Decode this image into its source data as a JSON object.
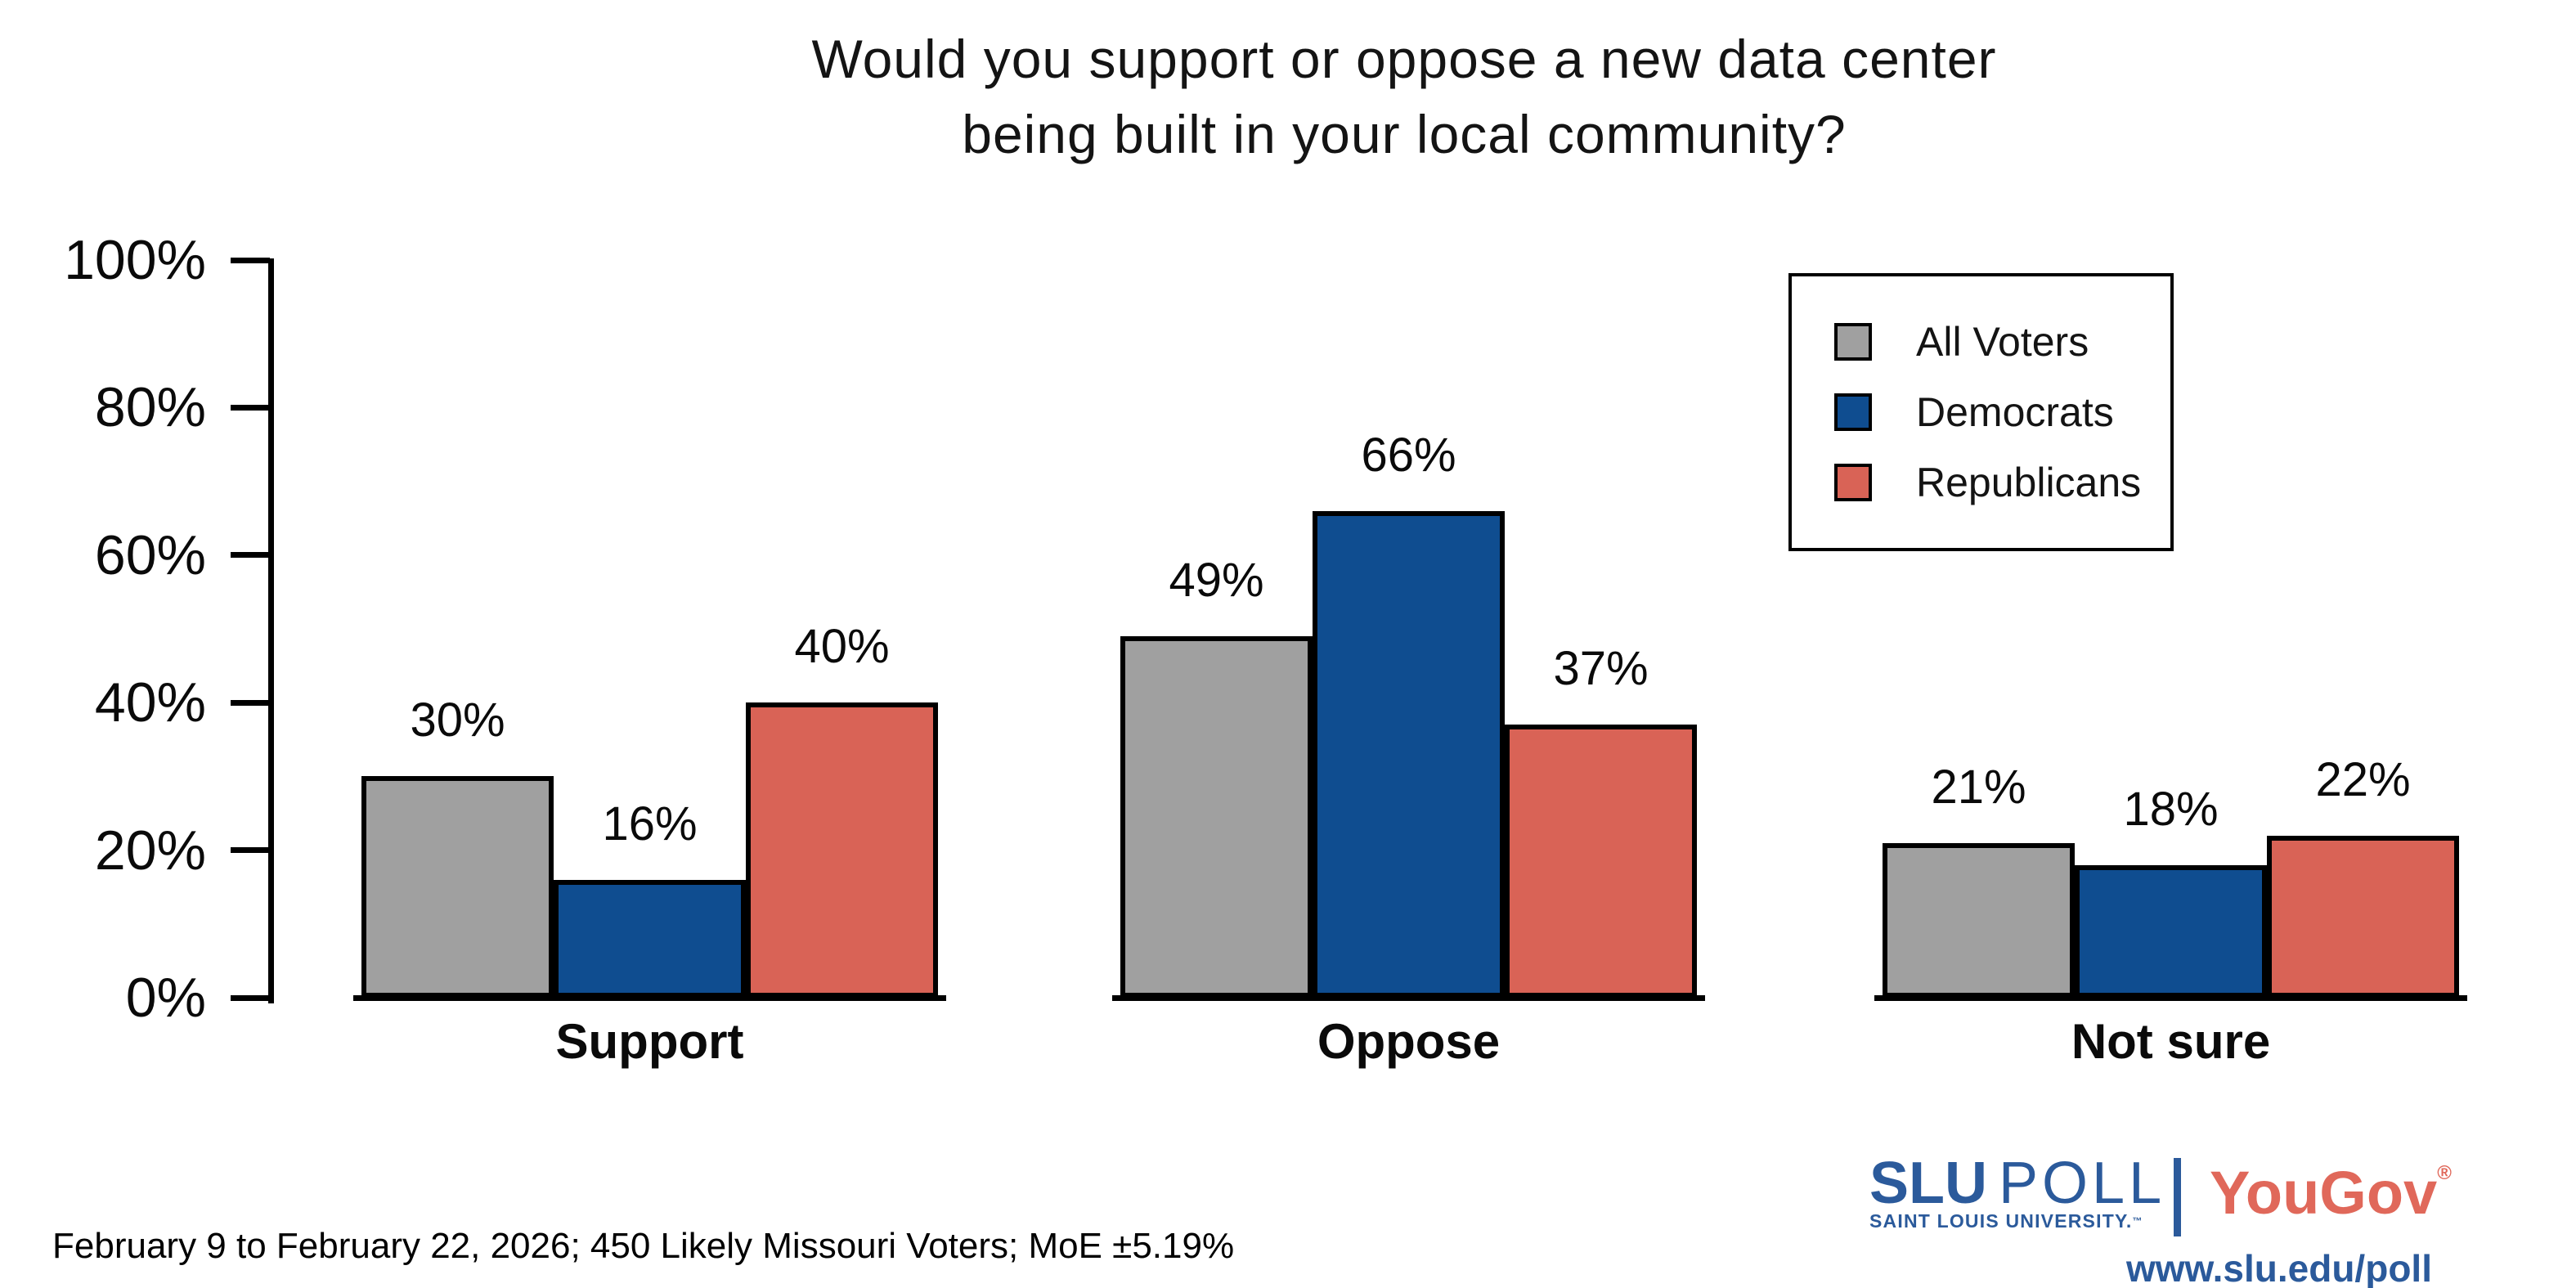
{
  "title": {
    "line1": "Would you support or oppose a new data center",
    "line2": "being built in your local community?"
  },
  "chart_data": {
    "type": "bar",
    "title": "Would you support or oppose a new data center being built in your local community?",
    "categories": [
      "Support",
      "Oppose",
      "Not sure"
    ],
    "series": [
      {
        "name": "All Voters",
        "color": "#a0a0a0",
        "values": [
          30,
          49,
          21
        ],
        "labels": [
          "30%",
          "49%",
          "21%"
        ]
      },
      {
        "name": "Democrats",
        "color": "#0f4d90",
        "values": [
          16,
          66,
          18
        ],
        "labels": [
          "16%",
          "66%",
          "18%"
        ]
      },
      {
        "name": "Republicans",
        "color": "#d96356",
        "values": [
          40,
          37,
          22
        ],
        "labels": [
          "40%",
          "37%",
          "22%"
        ]
      }
    ],
    "ylim": [
      0,
      100
    ],
    "yticks": [
      "0%",
      "20%",
      "40%",
      "60%",
      "80%",
      "100%"
    ],
    "grid": false,
    "legend_position": "top-right",
    "bar_edge_color": "#000000"
  },
  "footer": {
    "note": "February 9 to February 22, 2026; 450 Likely Missouri Voters; MoE ±5.19%"
  },
  "branding": {
    "slu_wordmark_bold": "SLU",
    "slu_wordmark_light": "POLL",
    "slu_subtitle": "SAINT LOUIS UNIVERSITY.",
    "slu_trademark": "™",
    "yougov": "YouGov",
    "yougov_registered": "®",
    "url": "www.slu.edu/poll",
    "slu_blue": "#2b5a9b",
    "yougov_red": "#e0685a"
  }
}
